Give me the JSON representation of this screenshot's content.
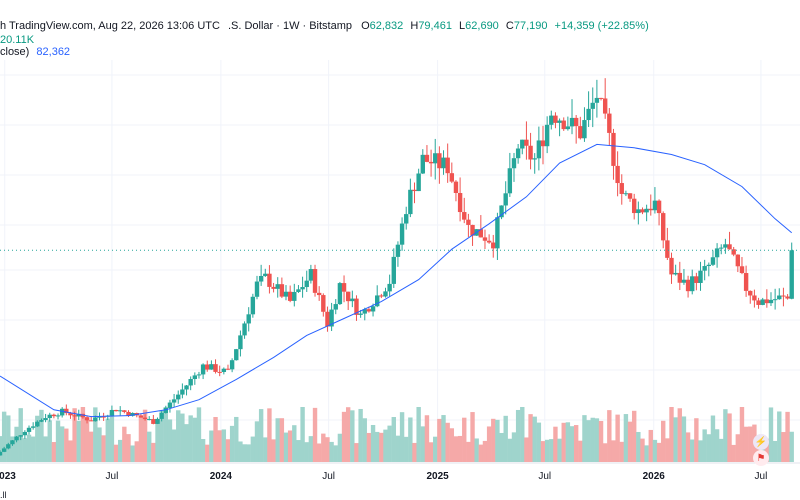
{
  "header": {
    "source_line": "h TradingView.com, Aug 22, 2026 13:06 UTC",
    "symbol_line": ".S. Dollar · 1W · Bitstamp",
    "ohlc": {
      "o_label": "O",
      "o": "62,832",
      "h_label": "H",
      "h": "79,461",
      "l_label": "L",
      "l": "62,690",
      "c_label": "C",
      "c": "77,190",
      "change": "+14,359 (+22.85%)"
    },
    "volume": "20.11K",
    "ma_label": "close)",
    "ma_value": "82,362"
  },
  "footer_text": ".ll",
  "colors": {
    "up": "#26a69a",
    "down": "#ef5350",
    "ma": "#2962ff",
    "vol_up": "#9fd4cc",
    "vol_down": "#f5a9a8",
    "last_price_line": "#26a69a"
  },
  "icons": {
    "spark": "spark-icon",
    "flag": "flag-icon"
  },
  "chart_data": {
    "type": "candlestick",
    "interval": "1W",
    "x_tick_labels": [
      "2023",
      "Jul",
      "2024",
      "Jul",
      "2025",
      "Jul",
      "2026",
      "Jul"
    ],
    "x_tick_dates": [
      "2023-01-01",
      "2023-07-01",
      "2024-01-01",
      "2024-07-01",
      "2025-01-01",
      "2025-07-01",
      "2026-01-01",
      "2026-07-01"
    ],
    "x_range": [
      "2022-12-24",
      "2026-09-05"
    ],
    "y_range": [
      19000,
      126000
    ],
    "grid": true,
    "moving_average_last": 82362,
    "last_candle": {
      "open": 62832,
      "high": 79461,
      "low": 62690,
      "close": 77190,
      "volume": 20110
    },
    "ma": [
      [
        "2022-12-24",
        40000
      ],
      [
        "2023-03-25",
        30000
      ],
      [
        "2023-05-27",
        28000
      ],
      [
        "2023-07-30",
        28300
      ],
      [
        "2023-09-30",
        30000
      ],
      [
        "2023-11-25",
        33000
      ],
      [
        "2024-01-27",
        39000
      ],
      [
        "2024-03-30",
        45500
      ],
      [
        "2024-05-25",
        52000
      ],
      [
        "2024-07-27",
        57000
      ],
      [
        "2024-09-28",
        62000
      ],
      [
        "2024-11-30",
        68500
      ],
      [
        "2025-01-25",
        77500
      ],
      [
        "2025-03-29",
        85000
      ],
      [
        "2025-05-31",
        93000
      ],
      [
        "2025-07-26",
        103000
      ],
      [
        "2025-09-27",
        108500
      ],
      [
        "2025-11-29",
        107500
      ],
      [
        "2026-01-31",
        105500
      ],
      [
        "2026-03-28",
        102500
      ],
      [
        "2026-05-30",
        96000
      ],
      [
        "2026-07-25",
        86500
      ],
      [
        "2026-08-22",
        82362
      ]
    ],
    "candles_anchor": [
      [
        "2022-12-24",
        16500
      ],
      [
        "2023-02-11",
        24000
      ],
      [
        "2023-03-18",
        28000
      ],
      [
        "2023-04-15",
        29500
      ],
      [
        "2023-06-03",
        27000
      ],
      [
        "2023-07-15",
        30200
      ],
      [
        "2023-09-16",
        26500
      ],
      [
        "2023-10-28",
        34500
      ],
      [
        "2023-12-09",
        43000
      ],
      [
        "2024-01-20",
        41000
      ],
      [
        "2024-03-09",
        67000
      ],
      [
        "2024-03-23",
        69000
      ],
      [
        "2024-05-04",
        62000
      ],
      [
        "2024-06-08",
        70000
      ],
      [
        "2024-07-06",
        55500
      ],
      [
        "2024-07-27",
        67000
      ],
      [
        "2024-08-31",
        58000
      ],
      [
        "2024-10-19",
        68000
      ],
      [
        "2024-11-16",
        90000
      ],
      [
        "2024-12-14",
        104000
      ],
      [
        "2025-01-25",
        102000
      ],
      [
        "2025-03-01",
        84000
      ],
      [
        "2025-04-12",
        80000
      ],
      [
        "2025-05-24",
        108000
      ],
      [
        "2025-06-21",
        104000
      ],
      [
        "2025-07-19",
        118000
      ],
      [
        "2025-08-09",
        116000
      ],
      [
        "2025-09-06",
        112000
      ],
      [
        "2025-10-04",
        123000
      ],
      [
        "2025-10-25",
        110000
      ],
      [
        "2025-11-15",
        94000
      ],
      [
        "2025-12-13",
        89000
      ],
      [
        "2026-01-10",
        91000
      ],
      [
        "2026-02-07",
        70000
      ],
      [
        "2026-03-07",
        67000
      ],
      [
        "2026-04-04",
        71000
      ],
      [
        "2026-05-09",
        79000
      ],
      [
        "2026-06-13",
        66000
      ],
      [
        "2026-07-04",
        62000
      ],
      [
        "2026-08-08",
        63000
      ],
      [
        "2026-08-15",
        62832
      ]
    ]
  }
}
